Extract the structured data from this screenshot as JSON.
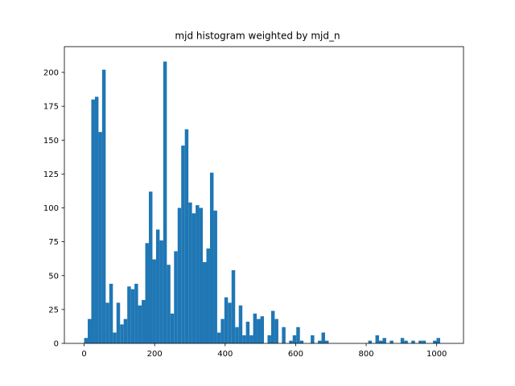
{
  "chart_data": {
    "type": "bar",
    "title": "mjd histogram weighted by mjd_n",
    "xlabel": "",
    "ylabel": "",
    "xlim": [
      -56,
      1076
    ],
    "ylim": [
      0,
      219
    ],
    "grid": false,
    "bar_color": "#1f77b4",
    "bin_start": 0,
    "bin_width": 10.2,
    "values": [
      4,
      18,
      180,
      182,
      156,
      202,
      30,
      44,
      8,
      30,
      14,
      18,
      42,
      40,
      44,
      28,
      32,
      74,
      112,
      62,
      84,
      76,
      208,
      58,
      22,
      68,
      100,
      146,
      158,
      104,
      96,
      102,
      100,
      60,
      70,
      126,
      98,
      8,
      18,
      34,
      30,
      54,
      12,
      28,
      6,
      16,
      6,
      22,
      18,
      20,
      0,
      6,
      24,
      18,
      0,
      12,
      0,
      2,
      6,
      12,
      2,
      0,
      0,
      6,
      0,
      2,
      8,
      2,
      0,
      0,
      0,
      0,
      0,
      0,
      0,
      0,
      0,
      0,
      0,
      2,
      0,
      6,
      2,
      4,
      0,
      2,
      0,
      0,
      4,
      2,
      0,
      2,
      0,
      2,
      2,
      0,
      0,
      2,
      4,
      0
    ],
    "x_ticks": [
      0,
      200,
      400,
      600,
      800,
      1000
    ],
    "y_ticks": [
      0,
      25,
      50,
      75,
      100,
      125,
      150,
      175,
      200
    ]
  }
}
